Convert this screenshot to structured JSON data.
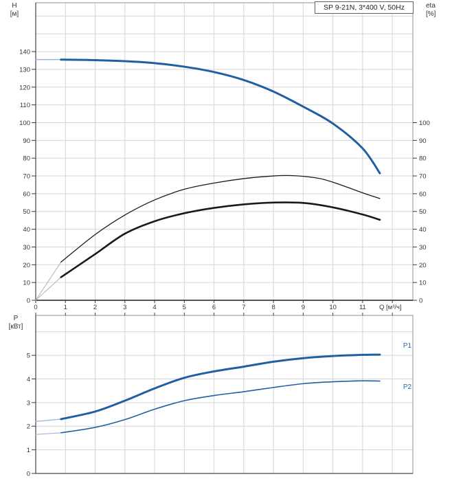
{
  "header": {
    "title_box": "SP 9-21N, 3*400 V, 50Hz"
  },
  "labels": {
    "h_axis": "H",
    "h_unit": "[м]",
    "eta_axis": "eta",
    "eta_unit": "[%]",
    "q_axis": "Q [м³/ч]",
    "p_axis": "P",
    "p_unit": "[кВт]",
    "p1": "P1",
    "p2": "P2"
  },
  "colors": {
    "curve_blue": "#1f5fa2",
    "curve_blue_lead": "#92add0",
    "curve_black": "#1a1a1a",
    "curve_black_lead": "#b3b3b3",
    "grid": "#d6d6d6",
    "border": "#919191",
    "axis_dark": "#1c1c1c",
    "tick": "#3a3a3a",
    "tick_text": "#333333",
    "label_blue": "#2b65ad"
  },
  "chart_data": [
    {
      "type": "line",
      "title": "SP 9-21N, 3*400 V, 50Hz",
      "xlabel": "Q [м³/ч]",
      "ylabel_left": "H [м]",
      "ylabel_right": "eta [%]",
      "xlim": [
        0,
        12.69
      ],
      "ylim_left": [
        0,
        167.5
      ],
      "ylim_right_same_scale": true,
      "grid": true,
      "x_gridlines": [
        1,
        2,
        3,
        4,
        5,
        6,
        7,
        8,
        9,
        10,
        11,
        12
      ],
      "y_gridlines": [
        10,
        20,
        30,
        40,
        50,
        60,
        70,
        80,
        90,
        100,
        110,
        120,
        130,
        140,
        150,
        160
      ],
      "xticks": [
        0,
        1,
        2,
        3,
        4,
        5,
        6,
        7,
        8,
        9,
        10,
        11
      ],
      "xtick_marks": [
        0,
        1,
        2,
        3,
        4,
        5,
        6,
        7,
        8,
        9,
        10,
        11,
        12
      ],
      "yticks_left": [
        0,
        10,
        20,
        30,
        40,
        50,
        60,
        70,
        80,
        90,
        100,
        110,
        120,
        130,
        140
      ],
      "yticks_right": [
        0,
        10,
        20,
        30,
        40,
        50,
        60,
        70,
        80,
        90,
        100
      ],
      "series": [
        {
          "name": "H-lead",
          "axis": "left",
          "color": "#92add0",
          "width": 1.2,
          "smooth": false,
          "x": [
            0,
            0.85
          ],
          "y": [
            135.5,
            135.5
          ]
        },
        {
          "name": "H",
          "axis": "left",
          "color": "#1f5fa2",
          "width": 3,
          "smooth": true,
          "x": [
            0.85,
            2,
            3,
            4,
            5,
            6,
            7,
            8,
            9,
            10,
            11,
            11.58
          ],
          "y": [
            135.5,
            135.2,
            134.6,
            133.5,
            131.5,
            128.5,
            124,
            117.5,
            109,
            99.5,
            85.5,
            71.5
          ]
        },
        {
          "name": "eta-pump-lead",
          "axis": "right",
          "color": "#b3b3b3",
          "width": 1,
          "smooth": false,
          "x": [
            0,
            0.85
          ],
          "y": [
            0,
            21.5
          ]
        },
        {
          "name": "eta-pump",
          "axis": "right",
          "color": "#1a1a1a",
          "width": 1.3,
          "smooth": true,
          "x": [
            0.85,
            2,
            3,
            4,
            5,
            6,
            7,
            8,
            8.6,
            9.4,
            10,
            11,
            11.58
          ],
          "y": [
            21.5,
            37,
            48,
            56.5,
            62.5,
            66,
            68.5,
            70,
            70.2,
            69,
            66.5,
            60.5,
            57.3
          ]
        },
        {
          "name": "eta-total-lead",
          "axis": "right",
          "color": "#b3b3b3",
          "width": 1,
          "smooth": false,
          "x": [
            0,
            0.85
          ],
          "y": [
            0,
            13
          ]
        },
        {
          "name": "eta-total",
          "axis": "right",
          "color": "#1a1a1a",
          "width": 2.6,
          "smooth": true,
          "x": [
            0.85,
            2,
            3,
            4,
            5,
            6,
            7,
            8,
            9,
            10,
            11,
            11.58
          ],
          "y": [
            13,
            26,
            37.5,
            44.5,
            49,
            52,
            54,
            55,
            54.8,
            52.3,
            48.3,
            45.3
          ]
        }
      ]
    },
    {
      "type": "line",
      "title": "",
      "xlabel": "Q [м³/ч]",
      "ylabel_left": "P [кВт]",
      "xlim": [
        0,
        12.69
      ],
      "ylim_left": [
        0,
        6.69
      ],
      "grid": true,
      "x_gridlines": [
        1,
        2,
        3,
        4,
        5,
        6,
        7,
        8,
        9,
        10,
        11,
        12
      ],
      "y_gridlines": [
        1,
        2,
        3,
        4,
        5,
        6
      ],
      "xticks": [],
      "xtick_marks": [
        0,
        1,
        2,
        3,
        4,
        5,
        6,
        7,
        8,
        9,
        10,
        11,
        12
      ],
      "yticks_left": [
        0,
        1,
        2,
        3,
        4,
        5
      ],
      "series": [
        {
          "name": "P1-lead",
          "axis": "left",
          "color": "#92add0",
          "width": 1.2,
          "smooth": false,
          "x": [
            0,
            0.85
          ],
          "y": [
            2.2,
            2.3
          ]
        },
        {
          "name": "P1",
          "axis": "left",
          "color": "#1f5fa2",
          "width": 3,
          "smooth": true,
          "x": [
            0.85,
            2,
            3,
            4,
            5,
            6,
            7,
            8,
            9,
            10,
            11,
            11.58
          ],
          "y": [
            2.3,
            2.62,
            3.08,
            3.6,
            4.05,
            4.32,
            4.52,
            4.73,
            4.88,
            4.97,
            5.02,
            5.03
          ]
        },
        {
          "name": "P2-lead",
          "axis": "left",
          "color": "#92add0",
          "width": 1,
          "smooth": false,
          "x": [
            0,
            0.85
          ],
          "y": [
            1.65,
            1.72
          ]
        },
        {
          "name": "P2",
          "axis": "left",
          "color": "#1f5fa2",
          "width": 1.6,
          "smooth": true,
          "x": [
            0.85,
            2,
            3,
            4,
            5,
            6,
            7,
            8,
            9,
            10,
            11,
            11.58
          ],
          "y": [
            1.72,
            1.95,
            2.28,
            2.72,
            3.08,
            3.3,
            3.46,
            3.64,
            3.8,
            3.88,
            3.92,
            3.91
          ]
        }
      ]
    }
  ]
}
